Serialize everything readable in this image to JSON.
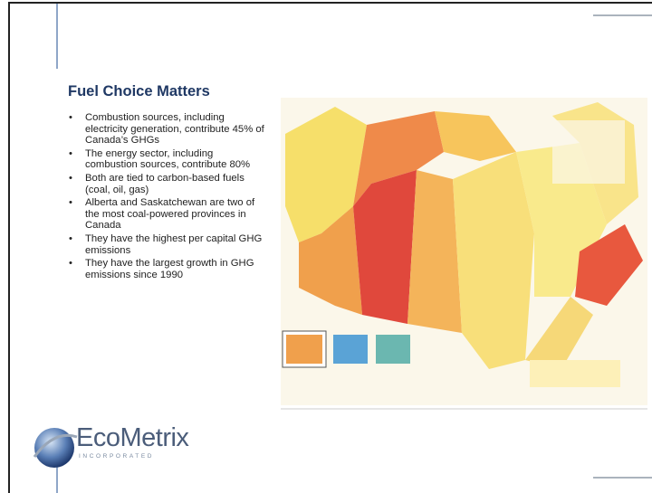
{
  "slide": {
    "title": "Fuel Choice Matters",
    "bullets": [
      "Combustion sources, including electricity generation, contribute 45% of Canada’s GHGs",
      "The energy sector, including combustion sources, contribute 80%",
      "Both are tied to carbon-based fuels (coal, oil, gas)",
      "Alberta and Saskatchewan are two of the most coal-powered provinces in Canada",
      "They have the highest per capital GHG emissions",
      "They have the largest growth in GHG emissions since 1990"
    ]
  },
  "logo": {
    "name": "EcoMetrix",
    "tagline": "INCORPORATED"
  }
}
